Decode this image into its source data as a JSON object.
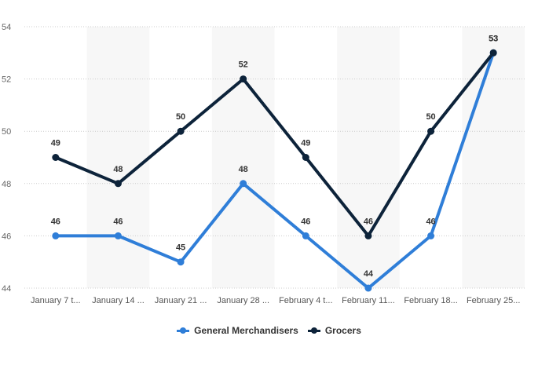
{
  "chart_data": {
    "type": "line",
    "categories": [
      "January 7 t...",
      "January 14 ...",
      "January 21 ...",
      "January 28 ...",
      "February 4 t...",
      "February 11...",
      "February 18...",
      "February 25..."
    ],
    "series": [
      {
        "name": "General Merchandisers",
        "color": "#2f7ed8",
        "values": [
          46,
          46,
          45,
          48,
          46,
          44,
          46,
          53
        ]
      },
      {
        "name": "Grocers",
        "color": "#0d233a",
        "values": [
          49,
          48,
          50,
          52,
          49,
          46,
          50,
          53
        ]
      }
    ],
    "yticks": [
      44,
      46,
      48,
      50,
      52,
      54
    ],
    "ylim": [
      44,
      54
    ],
    "grid": true,
    "legend_position": "bottom-center",
    "title": "",
    "xlabel": "",
    "ylabel": ""
  }
}
